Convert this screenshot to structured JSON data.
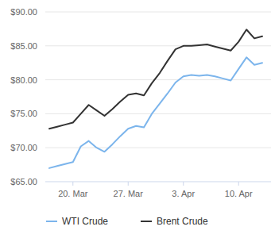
{
  "chart_data": {
    "type": "line",
    "categories": [
      null,
      null,
      null,
      "20. Mar",
      null,
      null,
      null,
      null,
      null,
      null,
      "27. Mar",
      null,
      null,
      null,
      null,
      null,
      null,
      "3. Apr",
      null,
      null,
      null,
      null,
      null,
      null,
      "10. Apr",
      null,
      null,
      null
    ],
    "series": [
      {
        "name": "WTI Crude",
        "color": "#7cb5ec",
        "values": [
          67.0,
          67.3,
          67.6,
          67.9,
          70.2,
          71.0,
          70.0,
          69.4,
          70.5,
          71.7,
          72.8,
          73.2,
          73.0,
          75.0,
          76.5,
          78.0,
          79.6,
          80.5,
          80.7,
          80.6,
          80.7,
          80.5,
          80.2,
          79.9,
          81.6,
          83.3,
          82.2,
          82.5
        ]
      },
      {
        "name": "Brent Crude",
        "color": "#333333",
        "values": [
          72.8,
          73.1,
          73.4,
          73.7,
          75.0,
          76.3,
          75.5,
          74.7,
          75.7,
          76.8,
          77.8,
          78.0,
          77.7,
          79.5,
          81.0,
          82.8,
          84.5,
          85.0,
          85.0,
          85.1,
          85.2,
          84.9,
          84.6,
          84.3,
          85.6,
          87.4,
          86.1,
          86.4
        ]
      }
    ],
    "ylim": [
      65,
      90
    ],
    "yticks": [
      {
        "value": 65,
        "label": "$65.00"
      },
      {
        "value": 70,
        "label": "$70.00"
      },
      {
        "value": 75,
        "label": "$75.00"
      },
      {
        "value": 80,
        "label": "$80.00"
      },
      {
        "value": 85,
        "label": "$85.00"
      },
      {
        "value": 90,
        "label": "$90.00"
      }
    ],
    "grid": true,
    "legend": "bottom"
  }
}
